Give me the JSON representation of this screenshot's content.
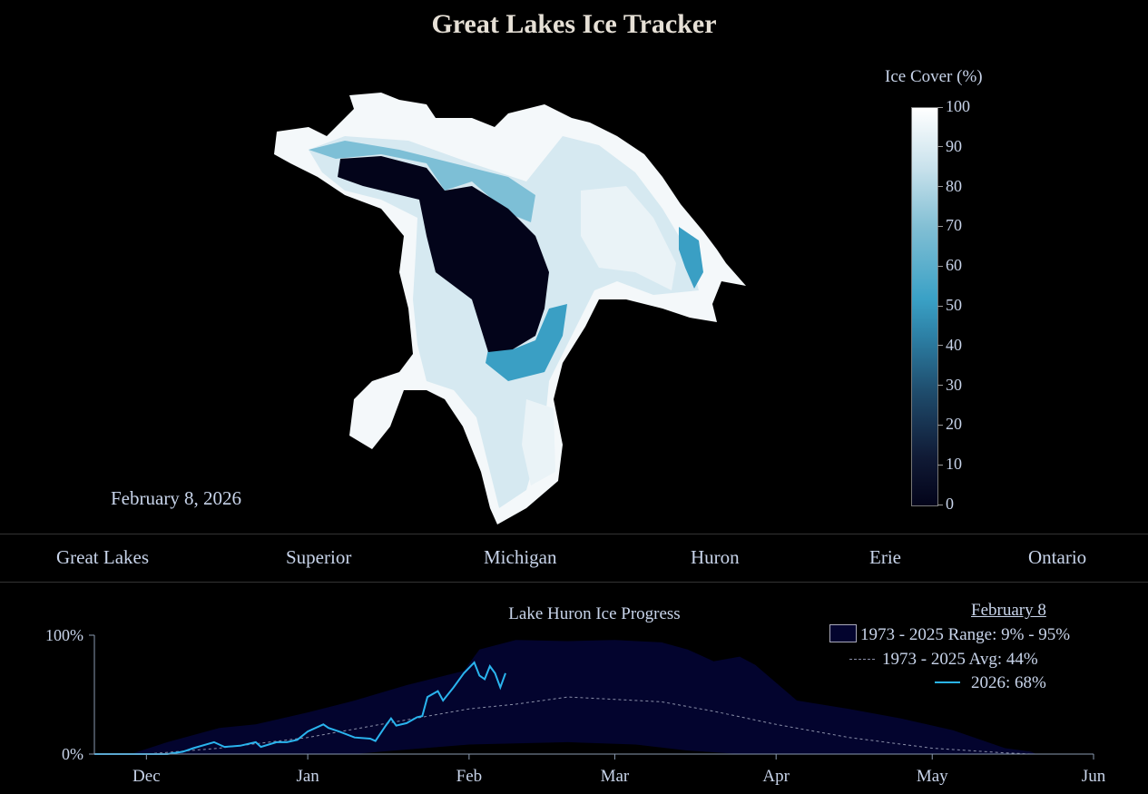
{
  "title": "Great Lakes Ice Tracker",
  "map": {
    "date": "February 8, 2026",
    "legend_title": "Ice Cover (%)",
    "legend_ticks": [
      "100",
      "90",
      "80",
      "70",
      "60",
      "50",
      "40",
      "30",
      "20",
      "10",
      "0"
    ],
    "colors": {
      "low": "#03041a",
      "mid": "#3aa1c6",
      "high": "#ffffff"
    }
  },
  "tabs": [
    {
      "label": "Great Lakes"
    },
    {
      "label": "Superior"
    },
    {
      "label": "Michigan"
    },
    {
      "label": "Huron"
    },
    {
      "label": "Erie"
    },
    {
      "label": "Ontario"
    }
  ],
  "chart_data": {
    "type": "area",
    "title": "Lake Huron Ice Progress",
    "xlabel": "",
    "ylabel": "",
    "x_ticks": [
      "Dec",
      "Jan",
      "Feb",
      "Mar",
      "Apr",
      "May",
      "Jun"
    ],
    "y_ticks": [
      "0%",
      "100%"
    ],
    "ylim": [
      0,
      100
    ],
    "xlim": [
      "2025-11-21",
      "2026-06-01"
    ],
    "grid": false,
    "legend_placement": "top-right",
    "legend": {
      "header": "February 8",
      "range": "1973 - 2025 Range: 9% - 95%",
      "avg": "1973 - 2025 Avg: 44%",
      "current": "2026: 68%"
    },
    "colors": {
      "range": "#03042e",
      "avg": "#8a8fa8",
      "current": "#2ab4ee"
    },
    "range_upper": [
      [
        "2025-11-21",
        0
      ],
      [
        "2025-11-28",
        0
      ],
      [
        "2025-12-05",
        10
      ],
      [
        "2025-12-15",
        22
      ],
      [
        "2025-12-22",
        25
      ],
      [
        "2026-01-01",
        35
      ],
      [
        "2026-01-10",
        45
      ],
      [
        "2026-01-20",
        58
      ],
      [
        "2026-01-31",
        70
      ],
      [
        "2026-02-03",
        88
      ],
      [
        "2026-02-10",
        96
      ],
      [
        "2026-02-20",
        95
      ],
      [
        "2026-03-01",
        96
      ],
      [
        "2026-03-10",
        94
      ],
      [
        "2026-03-15",
        88
      ],
      [
        "2026-03-20",
        78
      ],
      [
        "2026-03-25",
        82
      ],
      [
        "2026-03-28",
        75
      ],
      [
        "2026-04-01",
        60
      ],
      [
        "2026-04-05",
        45
      ],
      [
        "2026-04-15",
        38
      ],
      [
        "2026-04-25",
        30
      ],
      [
        "2026-05-05",
        20
      ],
      [
        "2026-05-15",
        5
      ],
      [
        "2026-05-20",
        2
      ],
      [
        "2026-05-21",
        0
      ]
    ],
    "range_lower": [
      [
        "2025-11-21",
        0
      ],
      [
        "2026-01-10",
        0
      ],
      [
        "2026-01-15",
        2
      ],
      [
        "2026-02-01",
        8
      ],
      [
        "2026-02-20",
        10
      ],
      [
        "2026-03-05",
        8
      ],
      [
        "2026-03-15",
        3
      ],
      [
        "2026-03-25",
        0
      ],
      [
        "2026-05-21",
        0
      ]
    ],
    "average": [
      [
        "2025-11-21",
        0
      ],
      [
        "2025-12-01",
        0
      ],
      [
        "2025-12-15",
        5
      ],
      [
        "2026-01-01",
        14
      ],
      [
        "2026-01-15",
        25
      ],
      [
        "2026-02-01",
        38
      ],
      [
        "2026-02-10",
        42
      ],
      [
        "2026-02-20",
        48
      ],
      [
        "2026-03-01",
        46
      ],
      [
        "2026-03-10",
        44
      ],
      [
        "2026-03-20",
        36
      ],
      [
        "2026-04-01",
        25
      ],
      [
        "2026-04-15",
        14
      ],
      [
        "2026-05-01",
        5
      ],
      [
        "2026-05-15",
        1
      ],
      [
        "2026-05-20",
        0
      ]
    ],
    "current_2026": [
      [
        "2025-11-21",
        0
      ],
      [
        "2025-12-05",
        0
      ],
      [
        "2025-12-08",
        2
      ],
      [
        "2025-12-10",
        5
      ],
      [
        "2025-12-14",
        10
      ],
      [
        "2025-12-16",
        6
      ],
      [
        "2025-12-19",
        7
      ],
      [
        "2025-12-22",
        10
      ],
      [
        "2025-12-23",
        6
      ],
      [
        "2025-12-26",
        10
      ],
      [
        "2025-12-28",
        10
      ],
      [
        "2025-12-30",
        12
      ],
      [
        "2026-01-01",
        19
      ],
      [
        "2026-01-04",
        25
      ],
      [
        "2026-01-05",
        22
      ],
      [
        "2026-01-07",
        19
      ],
      [
        "2026-01-10",
        14
      ],
      [
        "2026-01-13",
        13
      ],
      [
        "2026-01-14",
        11
      ],
      [
        "2026-01-16",
        24
      ],
      [
        "2026-01-17",
        30
      ],
      [
        "2026-01-18",
        24
      ],
      [
        "2026-01-20",
        26
      ],
      [
        "2026-01-22",
        31
      ],
      [
        "2026-01-23",
        32
      ],
      [
        "2026-01-24",
        48
      ],
      [
        "2026-01-26",
        53
      ],
      [
        "2026-01-27",
        45
      ],
      [
        "2026-01-29",
        56
      ],
      [
        "2026-01-31",
        68
      ],
      [
        "2026-02-02",
        77
      ],
      [
        "2026-02-03",
        66
      ],
      [
        "2026-02-04",
        63
      ],
      [
        "2026-02-05",
        74
      ],
      [
        "2026-02-06",
        68
      ],
      [
        "2026-02-07",
        56
      ],
      [
        "2026-02-08",
        68
      ]
    ]
  }
}
